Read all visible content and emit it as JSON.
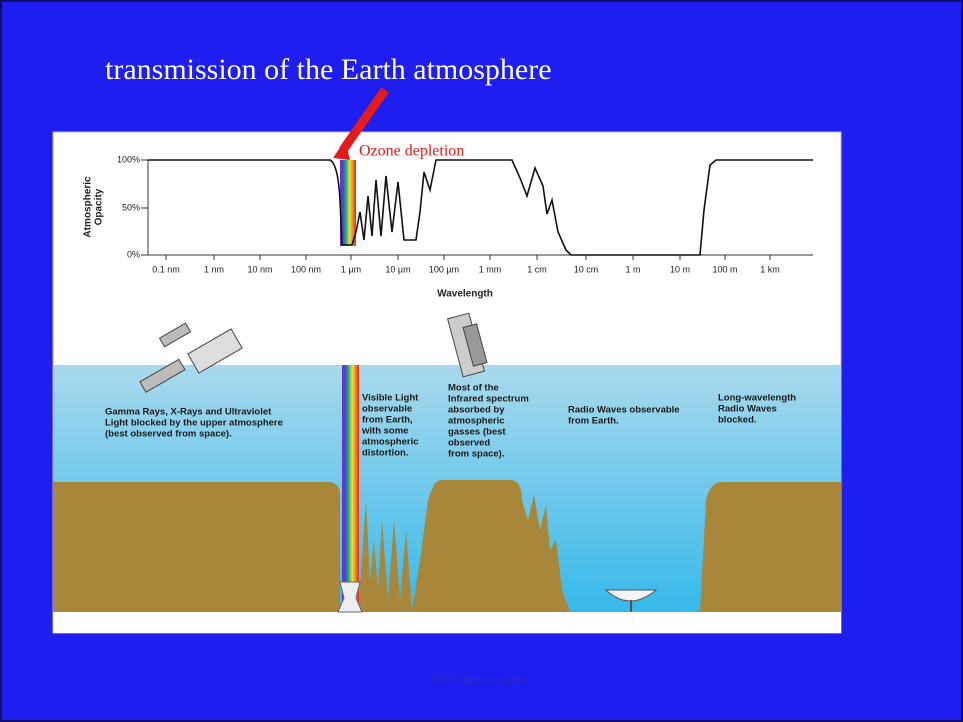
{
  "title": "transmission of the Earth atmosphere",
  "chart": {
    "y_axis_label": [
      "Atmospheric",
      "Opacity"
    ],
    "y_tick_labels": [
      "100%",
      "50%",
      "0%"
    ],
    "x_tick_labels": [
      "0.1 nm",
      "1 nm",
      "10 nm",
      "100 nm",
      "1 µm",
      "10 µm",
      "100 µm",
      "1 mm",
      "1 cm",
      "10 cm",
      "1 m",
      "10 m",
      "100 m",
      "1 km"
    ],
    "x_axis_label": "Wavelength",
    "annotation": "Ozone depletion"
  },
  "illustration": {
    "labels": [
      {
        "lines": [
          "Gamma Rays, X-Rays and Ultraviolet",
          "Light blocked by the upper atmosphere",
          "(best observed from space)."
        ]
      },
      {
        "lines": [
          "Visible Light",
          "observable",
          "from Earth,",
          "with some",
          "atmospheric",
          "distortion."
        ]
      },
      {
        "lines": [
          "Most of the",
          "Infrared spectrum",
          "absorbed by",
          "atmospheric",
          "gasses (best",
          "observed",
          "from space)."
        ]
      },
      {
        "lines": [
          "Radio Waves observable",
          "from Earth."
        ]
      },
      {
        "lines": [
          "Long-wavelength",
          "Radio Waves",
          "blocked."
        ]
      }
    ]
  },
  "footer": "EUV Spectroscopy"
}
